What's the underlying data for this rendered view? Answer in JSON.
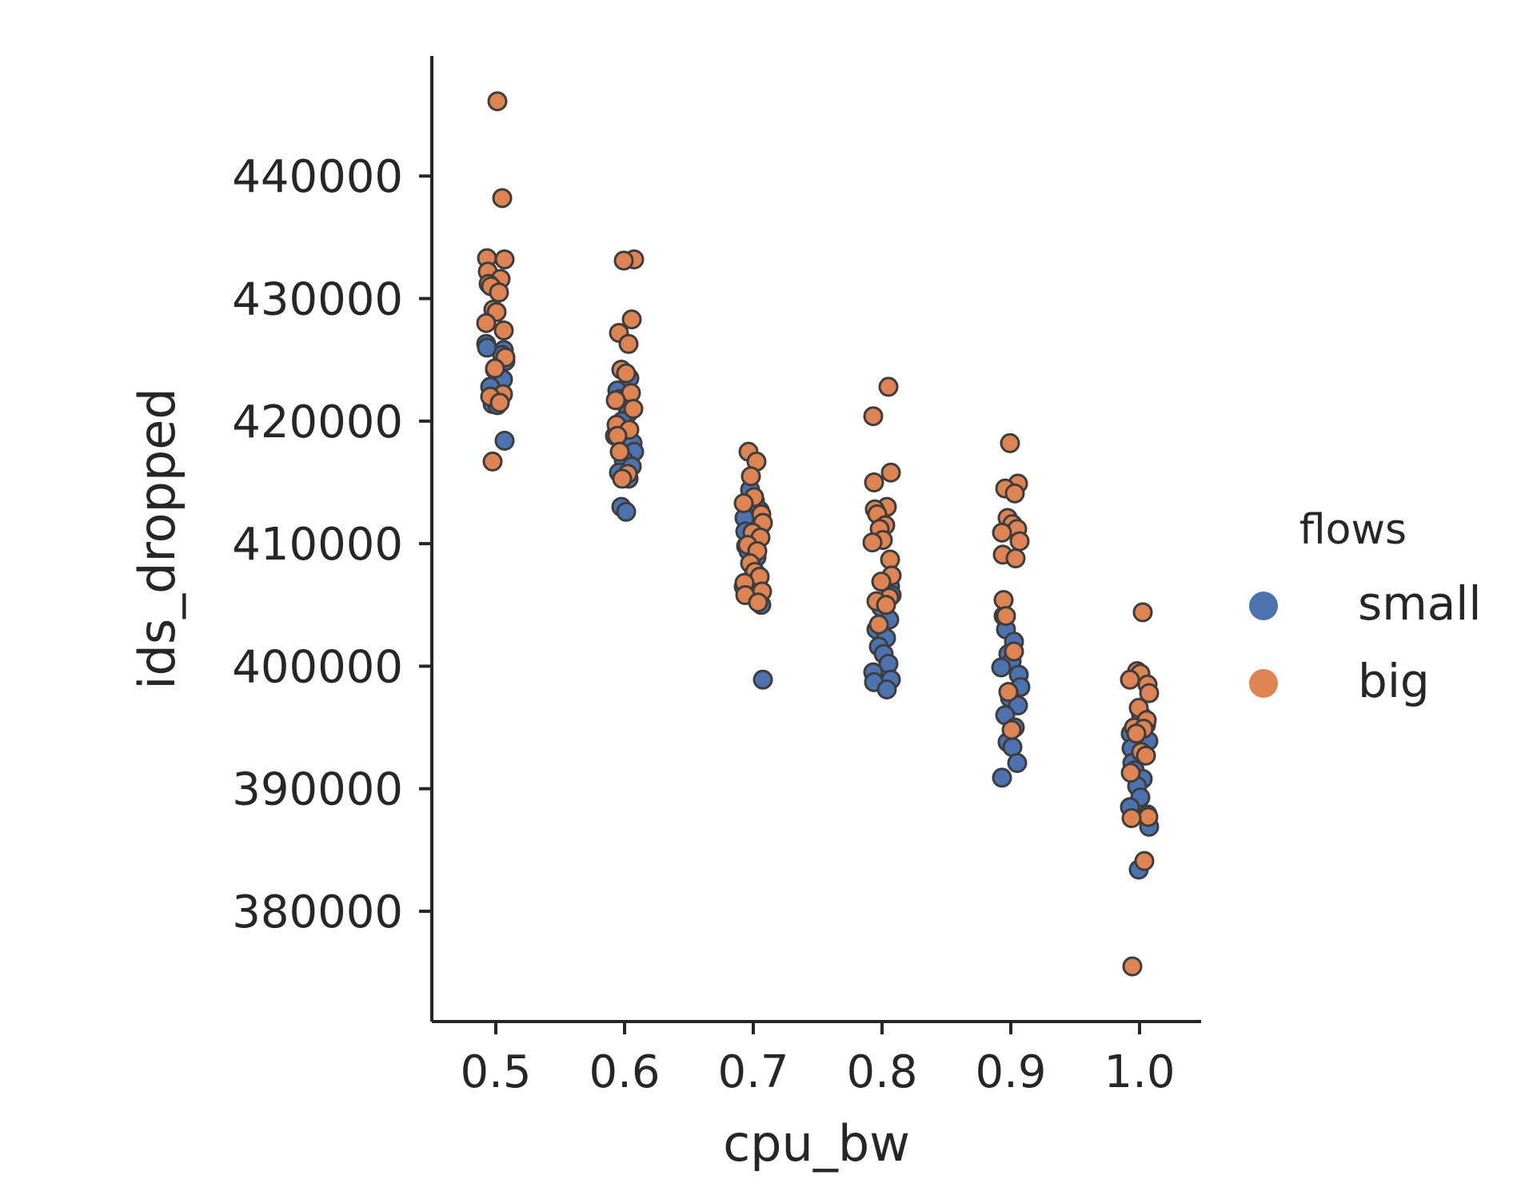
{
  "chart_data": {
    "type": "scatter",
    "subtype": "stripplot",
    "xlabel": "cpu_bw",
    "ylabel": "ids_dropped",
    "categories": [
      "0.5",
      "0.6",
      "0.7",
      "0.8",
      "0.9",
      "1.0"
    ],
    "y_ticks": [
      380000,
      390000,
      400000,
      410000,
      420000,
      430000,
      440000
    ],
    "y_tick_labels": [
      "380000",
      "390000",
      "400000",
      "410000",
      "420000",
      "430000",
      "440000"
    ],
    "ylim": [
      371000,
      449800
    ],
    "grid": false,
    "legend": {
      "title": "flows",
      "placement": "right"
    },
    "series": [
      {
        "name": "small",
        "color": "#4c72b0",
        "points": {
          "0.5": [
            426300,
            425800,
            424900,
            424200,
            423400,
            422800,
            422000,
            421400,
            421300,
            425400,
            426000,
            418400
          ],
          "0.6": [
            423500,
            422500,
            421800,
            420600,
            420000,
            419300,
            418800,
            418200,
            417500,
            416800,
            416300,
            415800,
            415300,
            413000,
            412600
          ],
          "0.7": [
            414400,
            413500,
            412700,
            412100,
            411600,
            411000,
            410400,
            409800,
            409400,
            408900,
            408400,
            407600,
            406500,
            405000,
            398900
          ],
          "0.8": [
            406500,
            405800,
            404800,
            403800,
            403000,
            402300,
            401600,
            401000,
            400200,
            399500,
            398900,
            398700,
            398100
          ],
          "0.9": [
            404100,
            403000,
            402000,
            401000,
            400400,
            399900,
            399300,
            398300,
            397400,
            396800,
            396000,
            395000,
            393800,
            393400,
            392100,
            390900
          ],
          "1.0": [
            396000,
            395200,
            394500,
            393900,
            393300,
            392700,
            392100,
            391500,
            390800,
            390200,
            389300,
            388500,
            387900,
            386900,
            383400
          ]
        }
      },
      {
        "name": "big",
        "color": "#dd8452",
        "points": {
          "0.5": [
            446100,
            438200,
            433300,
            433200,
            432200,
            431600,
            431200,
            431000,
            430500,
            429100,
            428900,
            428000,
            427400,
            425200,
            424300,
            422200,
            422000,
            421500,
            416700
          ],
          "0.6": [
            433200,
            433100,
            428300,
            427200,
            426300,
            424200,
            423900,
            422300,
            421700,
            421000,
            419700,
            419300,
            418800,
            417500,
            415700,
            415300
          ],
          "0.7": [
            417500,
            416700,
            415500,
            413800,
            413300,
            412400,
            411700,
            410900,
            410500,
            409900,
            409400,
            408400,
            407700,
            407300,
            406800,
            406100,
            405800,
            405200
          ],
          "0.8": [
            422800,
            420400,
            415800,
            415000,
            413000,
            412800,
            412400,
            411500,
            411200,
            410300,
            410100,
            408700,
            407400,
            406900,
            405600,
            405300,
            405000,
            403400
          ],
          "0.9": [
            418200,
            414900,
            414500,
            414100,
            412100,
            411600,
            411200,
            410900,
            410200,
            409100,
            408800,
            405400,
            404100,
            401200,
            397900,
            394800
          ],
          "1.0": [
            404400,
            399600,
            399400,
            398900,
            398500,
            397800,
            396600,
            395600,
            395000,
            394900,
            394500,
            393000,
            392700,
            391300,
            387700,
            387600,
            384100,
            375500
          ]
        }
      }
    ]
  }
}
